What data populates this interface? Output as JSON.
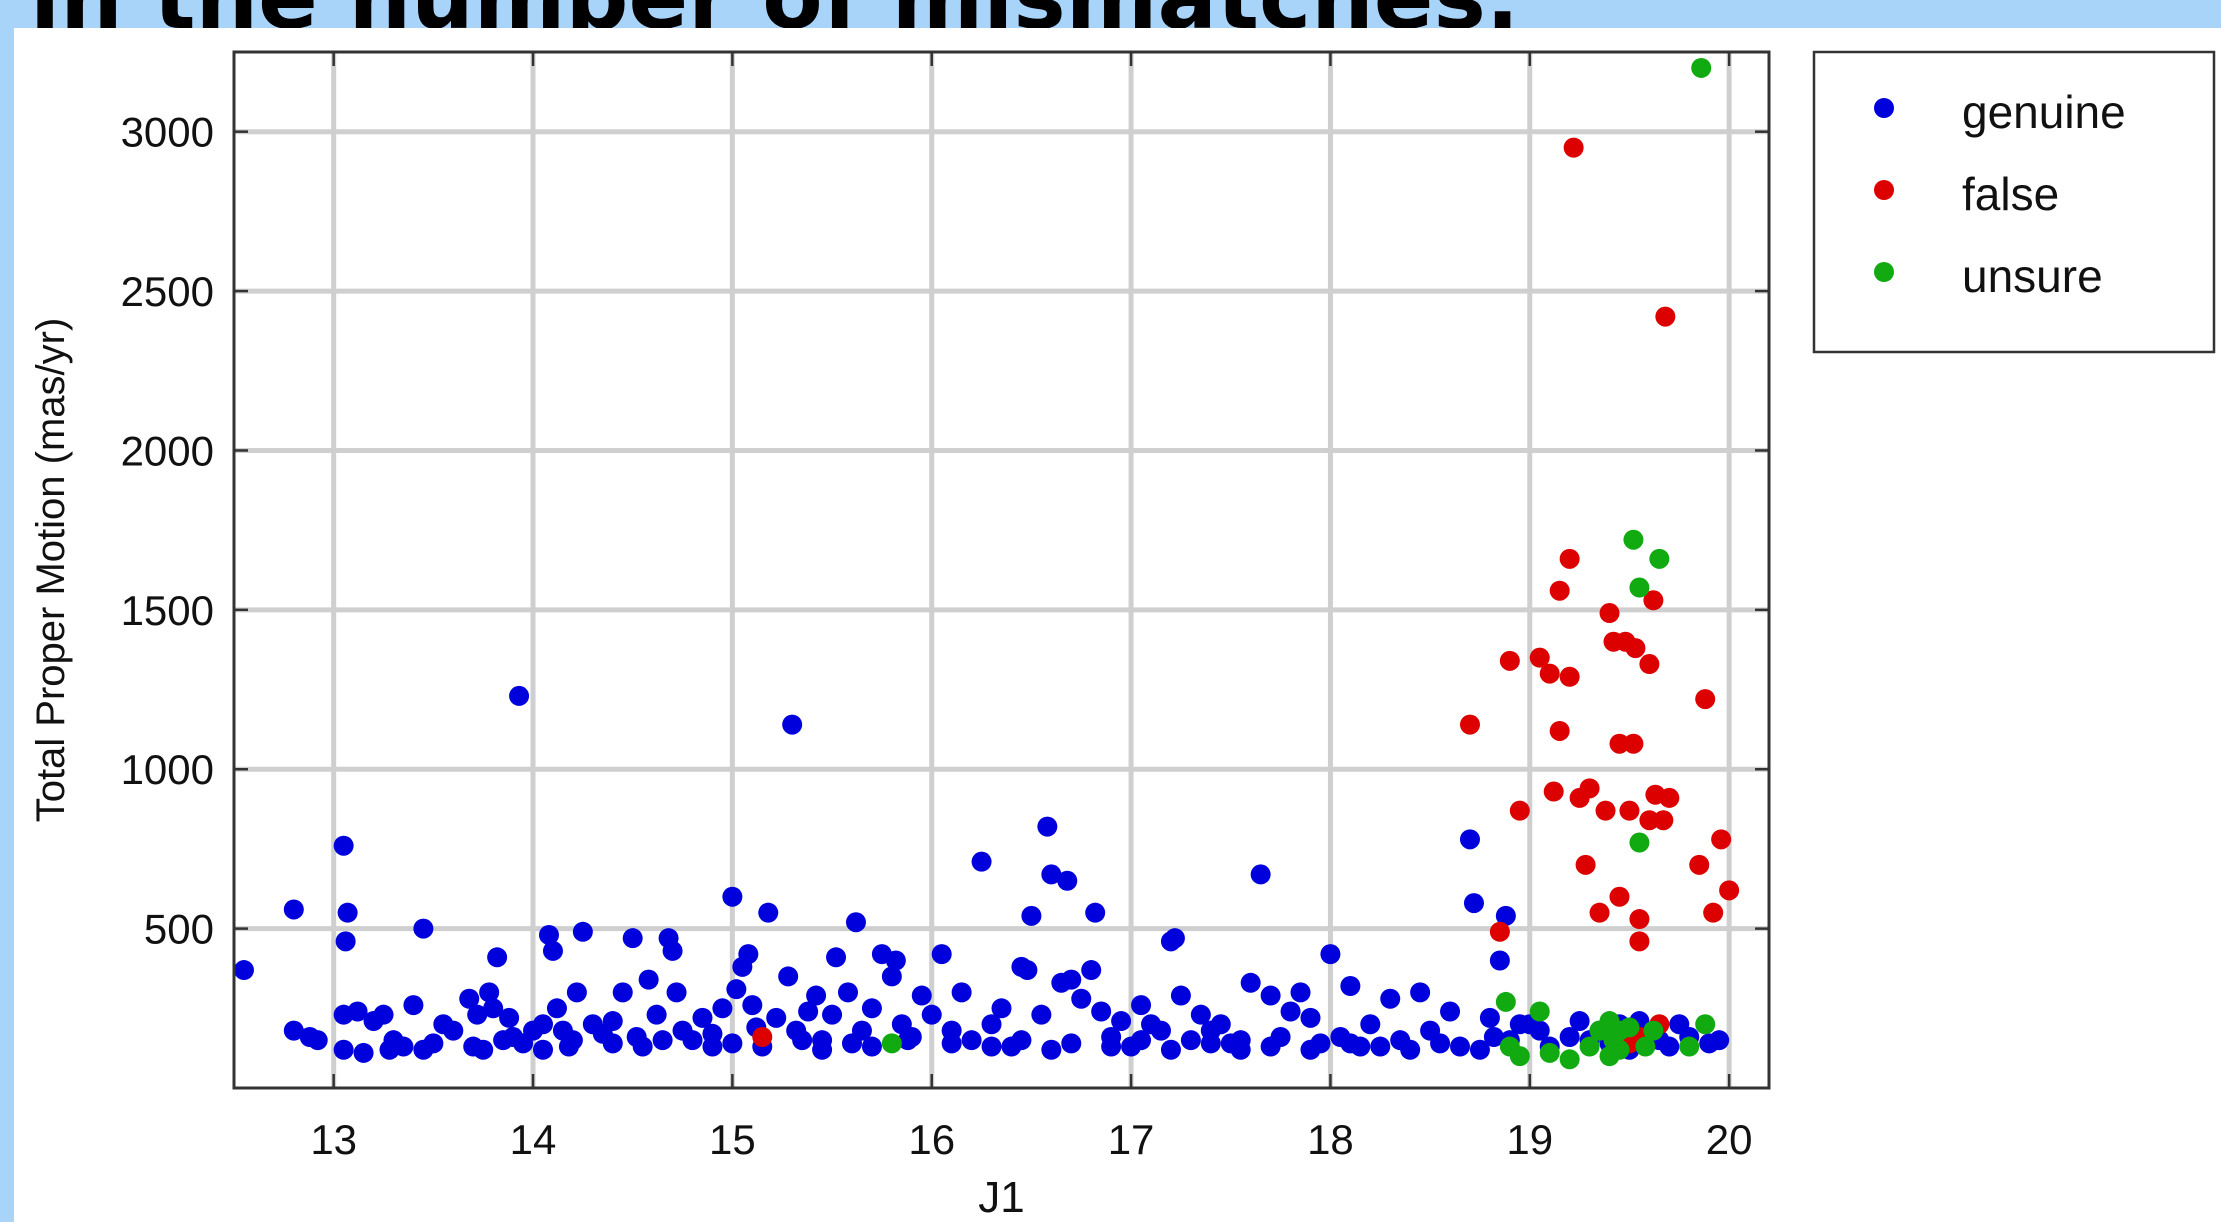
{
  "slide": {
    "title": "in the number of mismatches."
  },
  "chart_data": {
    "type": "scatter",
    "title": "",
    "xlabel": "J1",
    "ylabel": "Total Proper Motion (mas/yr)",
    "xlim": [
      12.5,
      20.2
    ],
    "ylim": [
      0,
      3250
    ],
    "x_ticks": [
      13,
      14,
      15,
      16,
      17,
      18,
      19,
      20
    ],
    "y_ticks": [
      500,
      1000,
      1500,
      2000,
      2500,
      3000
    ],
    "grid": true,
    "legend_position": "outside-right-top",
    "series": [
      {
        "name": "genuine",
        "color": "#0000dd",
        "points": [
          [
            12.55,
            370
          ],
          [
            12.8,
            560
          ],
          [
            12.8,
            180
          ],
          [
            12.88,
            160
          ],
          [
            12.92,
            150
          ],
          [
            13.05,
            760
          ],
          [
            13.07,
            550
          ],
          [
            13.06,
            460
          ],
          [
            13.05,
            230
          ],
          [
            13.12,
            240
          ],
          [
            13.2,
            210
          ],
          [
            13.25,
            230
          ],
          [
            13.05,
            120
          ],
          [
            13.15,
            110
          ],
          [
            13.28,
            120
          ],
          [
            13.35,
            130
          ],
          [
            13.4,
            260
          ],
          [
            13.45,
            500
          ],
          [
            13.45,
            120
          ],
          [
            13.55,
            200
          ],
          [
            13.6,
            180
          ],
          [
            13.68,
            280
          ],
          [
            13.72,
            230
          ],
          [
            13.78,
            300
          ],
          [
            13.8,
            250
          ],
          [
            13.82,
            410
          ],
          [
            13.85,
            150
          ],
          [
            13.7,
            130
          ],
          [
            13.75,
            120
          ],
          [
            13.88,
            220
          ],
          [
            13.93,
            1230
          ],
          [
            13.95,
            140
          ],
          [
            14.0,
            180
          ],
          [
            14.05,
            200
          ],
          [
            14.08,
            480
          ],
          [
            14.1,
            430
          ],
          [
            14.12,
            250
          ],
          [
            14.15,
            180
          ],
          [
            14.18,
            130
          ],
          [
            14.22,
            300
          ],
          [
            14.25,
            490
          ],
          [
            14.3,
            200
          ],
          [
            14.35,
            170
          ],
          [
            14.4,
            210
          ],
          [
            14.45,
            300
          ],
          [
            14.5,
            470
          ],
          [
            14.52,
            160
          ],
          [
            14.58,
            340
          ],
          [
            14.62,
            230
          ],
          [
            14.68,
            470
          ],
          [
            14.7,
            430
          ],
          [
            14.72,
            300
          ],
          [
            14.75,
            180
          ],
          [
            14.8,
            150
          ],
          [
            14.85,
            220
          ],
          [
            14.9,
            130
          ],
          [
            14.95,
            250
          ],
          [
            15.0,
            600
          ],
          [
            15.02,
            310
          ],
          [
            15.05,
            380
          ],
          [
            15.08,
            420
          ],
          [
            15.1,
            260
          ],
          [
            15.12,
            190
          ],
          [
            15.18,
            550
          ],
          [
            15.22,
            220
          ],
          [
            15.28,
            350
          ],
          [
            15.3,
            1140
          ],
          [
            15.32,
            180
          ],
          [
            15.38,
            240
          ],
          [
            15.42,
            290
          ],
          [
            15.45,
            150
          ],
          [
            15.5,
            230
          ],
          [
            15.52,
            410
          ],
          [
            15.58,
            300
          ],
          [
            15.62,
            520
          ],
          [
            15.65,
            180
          ],
          [
            15.7,
            250
          ],
          [
            15.75,
            420
          ],
          [
            15.8,
            350
          ],
          [
            15.82,
            400
          ],
          [
            15.85,
            200
          ],
          [
            15.9,
            160
          ],
          [
            15.95,
            290
          ],
          [
            16.0,
            230
          ],
          [
            16.05,
            420
          ],
          [
            16.1,
            180
          ],
          [
            16.15,
            300
          ],
          [
            16.2,
            150
          ],
          [
            16.25,
            710
          ],
          [
            16.3,
            200
          ],
          [
            16.35,
            250
          ],
          [
            16.4,
            130
          ],
          [
            16.45,
            380
          ],
          [
            16.48,
            370
          ],
          [
            16.5,
            540
          ],
          [
            16.55,
            230
          ],
          [
            16.58,
            820
          ],
          [
            16.6,
            670
          ],
          [
            16.65,
            330
          ],
          [
            16.68,
            650
          ],
          [
            16.7,
            340
          ],
          [
            16.75,
            280
          ],
          [
            16.8,
            370
          ],
          [
            16.82,
            550
          ],
          [
            16.85,
            240
          ],
          [
            16.9,
            160
          ],
          [
            16.95,
            210
          ],
          [
            17.0,
            130
          ],
          [
            17.05,
            260
          ],
          [
            17.1,
            200
          ],
          [
            17.15,
            180
          ],
          [
            17.2,
            460
          ],
          [
            17.22,
            470
          ],
          [
            17.25,
            290
          ],
          [
            17.3,
            150
          ],
          [
            17.35,
            230
          ],
          [
            17.4,
            180
          ],
          [
            17.45,
            200
          ],
          [
            17.5,
            140
          ],
          [
            17.55,
            120
          ],
          [
            17.6,
            330
          ],
          [
            17.65,
            670
          ],
          [
            17.7,
            290
          ],
          [
            17.75,
            160
          ],
          [
            17.8,
            240
          ],
          [
            17.85,
            300
          ],
          [
            17.9,
            220
          ],
          [
            17.95,
            140
          ],
          [
            18.0,
            420
          ],
          [
            18.05,
            160
          ],
          [
            18.1,
            320
          ],
          [
            18.15,
            130
          ],
          [
            18.2,
            200
          ],
          [
            18.3,
            280
          ],
          [
            18.35,
            150
          ],
          [
            18.45,
            300
          ],
          [
            18.5,
            180
          ],
          [
            18.6,
            240
          ],
          [
            18.7,
            780
          ],
          [
            18.72,
            580
          ],
          [
            18.8,
            220
          ],
          [
            18.85,
            400
          ],
          [
            18.88,
            540
          ],
          [
            18.9,
            150
          ],
          [
            18.95,
            200
          ],
          [
            19.05,
            180
          ],
          [
            19.1,
            130
          ],
          [
            19.2,
            160
          ],
          [
            19.3,
            150
          ],
          [
            19.4,
            140
          ],
          [
            19.45,
            200
          ],
          [
            19.5,
            120
          ],
          [
            19.6,
            170
          ],
          [
            19.7,
            130
          ],
          [
            19.75,
            200
          ],
          [
            19.8,
            160
          ],
          [
            19.9,
            140
          ],
          [
            19.95,
            150
          ],
          [
            13.3,
            150
          ],
          [
            13.5,
            140
          ],
          [
            13.9,
            160
          ],
          [
            14.05,
            120
          ],
          [
            14.2,
            150
          ],
          [
            14.4,
            140
          ],
          [
            14.55,
            130
          ],
          [
            14.65,
            150
          ],
          [
            14.9,
            170
          ],
          [
            15.0,
            140
          ],
          [
            15.15,
            130
          ],
          [
            15.35,
            150
          ],
          [
            15.45,
            120
          ],
          [
            15.6,
            140
          ],
          [
            15.7,
            130
          ],
          [
            15.88,
            150
          ],
          [
            16.1,
            140
          ],
          [
            16.3,
            130
          ],
          [
            16.45,
            150
          ],
          [
            16.6,
            120
          ],
          [
            16.7,
            140
          ],
          [
            16.9,
            130
          ],
          [
            17.05,
            150
          ],
          [
            17.2,
            120
          ],
          [
            17.4,
            140
          ],
          [
            17.55,
            150
          ],
          [
            17.7,
            130
          ],
          [
            17.9,
            120
          ],
          [
            18.1,
            140
          ],
          [
            18.25,
            130
          ],
          [
            18.4,
            120
          ],
          [
            18.55,
            140
          ],
          [
            18.65,
            130
          ],
          [
            18.75,
            120
          ],
          [
            18.82,
            160
          ],
          [
            19.0,
            200
          ],
          [
            19.25,
            210
          ],
          [
            19.35,
            180
          ],
          [
            19.55,
            210
          ],
          [
            19.65,
            150
          ]
        ]
      },
      {
        "name": "false",
        "color": "#dd0000",
        "points": [
          [
            15.15,
            160
          ],
          [
            18.7,
            1140
          ],
          [
            18.85,
            490
          ],
          [
            18.9,
            1340
          ],
          [
            18.95,
            870
          ],
          [
            19.05,
            1350
          ],
          [
            19.1,
            1300
          ],
          [
            19.12,
            930
          ],
          [
            19.15,
            1560
          ],
          [
            19.15,
            1120
          ],
          [
            19.2,
            1660
          ],
          [
            19.2,
            1290
          ],
          [
            19.22,
            2950
          ],
          [
            19.25,
            910
          ],
          [
            19.28,
            700
          ],
          [
            19.3,
            940
          ],
          [
            19.35,
            550
          ],
          [
            19.38,
            870
          ],
          [
            19.4,
            1490
          ],
          [
            19.42,
            1400
          ],
          [
            19.45,
            600
          ],
          [
            19.45,
            1080
          ],
          [
            19.48,
            1400
          ],
          [
            19.5,
            870
          ],
          [
            19.52,
            1080
          ],
          [
            19.53,
            1380
          ],
          [
            19.55,
            460
          ],
          [
            19.55,
            530
          ],
          [
            19.6,
            840
          ],
          [
            19.6,
            1330
          ],
          [
            19.62,
            1530
          ],
          [
            19.63,
            920
          ],
          [
            19.65,
            200
          ],
          [
            19.67,
            840
          ],
          [
            19.68,
            2420
          ],
          [
            19.7,
            910
          ],
          [
            19.85,
            700
          ],
          [
            19.88,
            1220
          ],
          [
            19.92,
            550
          ],
          [
            19.96,
            780
          ],
          [
            20.0,
            620
          ],
          [
            19.5,
            140
          ],
          [
            19.55,
            160
          ]
        ]
      },
      {
        "name": "unsure",
        "color": "#11aa11",
        "points": [
          [
            15.8,
            140
          ],
          [
            18.88,
            270
          ],
          [
            18.9,
            130
          ],
          [
            18.95,
            100
          ],
          [
            19.05,
            240
          ],
          [
            19.1,
            110
          ],
          [
            19.2,
            90
          ],
          [
            19.3,
            130
          ],
          [
            19.35,
            180
          ],
          [
            19.4,
            210
          ],
          [
            19.42,
            150
          ],
          [
            19.45,
            120
          ],
          [
            19.5,
            190
          ],
          [
            19.52,
            1720
          ],
          [
            19.55,
            1570
          ],
          [
            19.55,
            770
          ],
          [
            19.58,
            130
          ],
          [
            19.62,
            180
          ],
          [
            19.65,
            1660
          ],
          [
            19.8,
            130
          ],
          [
            19.88,
            200
          ],
          [
            19.86,
            3200
          ],
          [
            19.4,
            100
          ],
          [
            19.45,
            180
          ]
        ]
      }
    ]
  }
}
